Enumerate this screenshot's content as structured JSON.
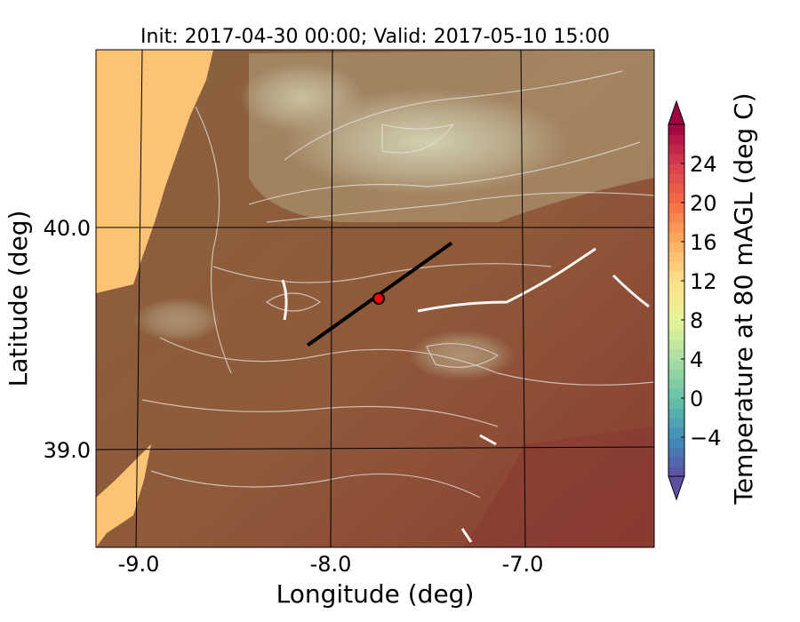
{
  "title": "Init: 2017-04-30 00:00; Valid: 2017-05-10 15:00",
  "x_axis": {
    "label": "Longitude (deg)",
    "ticks": [
      {
        "value": -9.0,
        "label": "-9.0"
      },
      {
        "value": -8.0,
        "label": "-8.0"
      },
      {
        "value": -7.0,
        "label": "-7.0"
      }
    ]
  },
  "y_axis": {
    "label": "Latitude (deg)",
    "ticks": [
      {
        "value": 40.0,
        "label": "40.0"
      },
      {
        "value": 39.0,
        "label": "39.0"
      }
    ]
  },
  "colorbar": {
    "label": "Temperature at 80 mAGL (deg C)",
    "min": -8,
    "max": 28,
    "extend": "both",
    "ticks": [
      {
        "value": -4,
        "label": "−4"
      },
      {
        "value": 0,
        "label": "0"
      },
      {
        "value": 4,
        "label": "4"
      },
      {
        "value": 8,
        "label": "8"
      },
      {
        "value": 12,
        "label": "12"
      },
      {
        "value": 16,
        "label": "16"
      },
      {
        "value": 20,
        "label": "20"
      },
      {
        "value": 24,
        "label": "24"
      }
    ],
    "colors": [
      "#5e4fa2",
      "#3f8fbb",
      "#66c2a5",
      "#abdda4",
      "#e6f598",
      "#fee08b",
      "#fdae61",
      "#f46d43",
      "#d53e4f",
      "#9e0142"
    ]
  },
  "map": {
    "sea_color": "#fdc374",
    "land_color": "#8a5e3a",
    "highland_color": "#c8bc9a",
    "contour_color": "#e6e0dc"
  },
  "marker": {
    "lon": -7.75,
    "lat": 39.68,
    "color": "#ff0000"
  },
  "cross_section": {
    "start": [
      -8.12,
      39.47
    ],
    "end": [
      -7.37,
      39.93
    ],
    "color": "#000000"
  }
}
